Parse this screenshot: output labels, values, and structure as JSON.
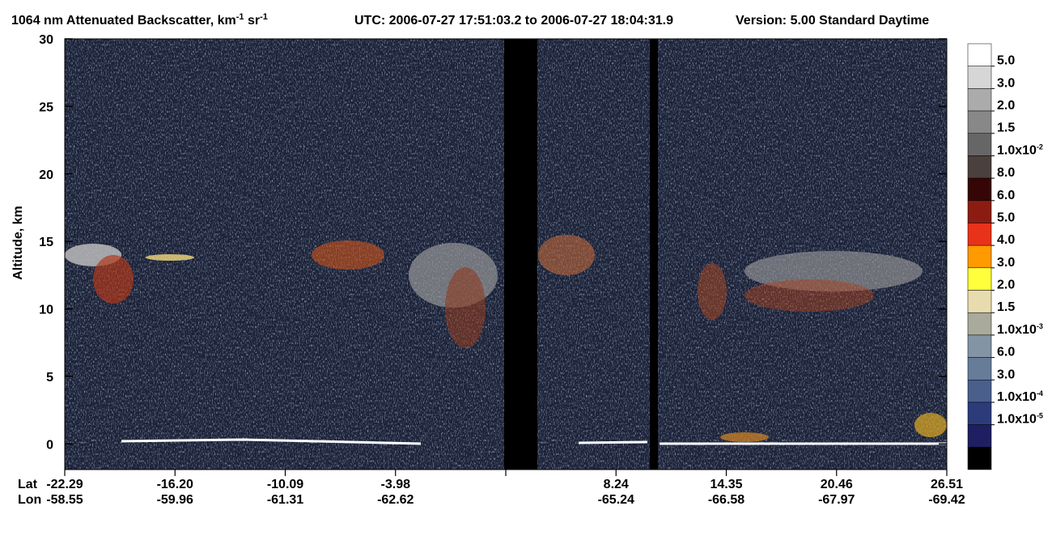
{
  "chart_data": {
    "type": "heatmap",
    "title": {
      "main": "1064 nm Attenuated Backscatter, km",
      "exp1": "-1",
      "unit2": " sr",
      "exp2": "-1",
      "time": "UTC:  2006-07-27 17:51:03.2  to  2006-07-27 18:04:31.9",
      "version": "Version: 5.00  Standard  Daytime"
    },
    "y_label": "Altitude, km",
    "ylim": [
      -1.9,
      30
    ],
    "yticks": [
      0,
      5,
      10,
      15,
      20,
      25,
      30
    ],
    "x_row_labels": [
      "Lat",
      "Lon"
    ],
    "lat": [
      "-22.29",
      "-16.20",
      "-10.09",
      "-3.98",
      null,
      "8.24",
      "14.35",
      "20.46",
      "26.51"
    ],
    "lon": [
      "-58.55",
      "-59.96",
      "-61.31",
      "-62.62",
      null,
      "-65.24",
      "-66.58",
      "-67.97",
      "-69.42"
    ],
    "colorbar": {
      "colors": [
        "#ffffff",
        "#d6d6d6",
        "#ababab",
        "#888888",
        "#666666",
        "#4a403d",
        "#360606",
        "#8c1c12",
        "#e8321a",
        "#ff9a00",
        "#ffff3c",
        "#e8dcae",
        "#a9aa9c",
        "#8394a4",
        "#667c98",
        "#4a5f8c",
        "#2c3b7a",
        "#1e1e62",
        "#000000"
      ],
      "labels": [
        {
          "text": "5.0"
        },
        {
          "text": "3.0"
        },
        {
          "text": "2.0"
        },
        {
          "text": "1.5"
        },
        {
          "text": "1.0x10",
          "exp": "-2"
        },
        {
          "text": "8.0"
        },
        {
          "text": "6.0"
        },
        {
          "text": "5.0"
        },
        {
          "text": "4.0"
        },
        {
          "text": "3.0"
        },
        {
          "text": "2.0"
        },
        {
          "text": "1.5"
        },
        {
          "text": "1.0x10",
          "exp": "-3"
        },
        {
          "text": "6.0"
        },
        {
          "text": "3.0"
        },
        {
          "text": "1.0x10",
          "exp": "-4"
        },
        {
          "text": "1.0x10",
          "exp": "-5"
        }
      ]
    }
  }
}
